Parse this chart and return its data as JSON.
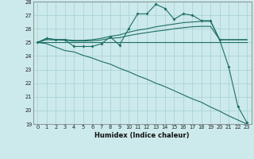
{
  "xlabel": "Humidex (Indice chaleur)",
  "bg_color": "#cce9eb",
  "grid_color": "#aad4d6",
  "line_color": "#1e6e65",
  "x_values": [
    0,
    1,
    2,
    3,
    4,
    5,
    6,
    7,
    8,
    9,
    10,
    11,
    12,
    13,
    14,
    15,
    16,
    17,
    18,
    19,
    20,
    21,
    22,
    23
  ],
  "series1": [
    25.0,
    25.3,
    25.2,
    25.2,
    24.7,
    24.7,
    24.7,
    24.9,
    25.4,
    24.8,
    26.0,
    27.1,
    27.1,
    27.8,
    27.5,
    26.7,
    27.1,
    27.0,
    26.6,
    26.6,
    25.2,
    23.2,
    20.3,
    19.1
  ],
  "series2": [
    25.0,
    25.3,
    25.2,
    25.2,
    25.15,
    25.15,
    25.2,
    25.3,
    25.45,
    25.55,
    25.75,
    25.9,
    26.0,
    26.15,
    26.25,
    26.35,
    26.45,
    26.5,
    26.55,
    26.55,
    25.2,
    25.2,
    25.2,
    25.2
  ],
  "series3": [
    25.0,
    25.2,
    25.18,
    25.16,
    25.1,
    25.1,
    25.12,
    25.18,
    25.3,
    25.35,
    25.5,
    25.62,
    25.72,
    25.82,
    25.9,
    26.0,
    26.08,
    26.15,
    26.18,
    26.18,
    25.2,
    25.2,
    25.2,
    25.2
  ],
  "series4": [
    25.0,
    25.0,
    25.0,
    25.0,
    25.0,
    25.0,
    25.0,
    25.0,
    25.0,
    25.0,
    25.0,
    25.0,
    25.0,
    25.0,
    25.0,
    25.0,
    25.0,
    25.0,
    25.0,
    25.0,
    25.0,
    25.0,
    25.0,
    25.0
  ],
  "series5": [
    25.0,
    24.9,
    24.65,
    24.4,
    24.3,
    24.05,
    23.85,
    23.6,
    23.4,
    23.1,
    22.85,
    22.55,
    22.3,
    22.0,
    21.75,
    21.45,
    21.15,
    20.85,
    20.6,
    20.25,
    19.95,
    19.6,
    19.3,
    19.0
  ],
  "ylim": [
    19,
    28
  ],
  "xlim": [
    -0.5,
    23.5
  ],
  "yticks": [
    19,
    20,
    21,
    22,
    23,
    24,
    25,
    26,
    27,
    28
  ],
  "xticks": [
    0,
    1,
    2,
    3,
    4,
    5,
    6,
    7,
    8,
    9,
    10,
    11,
    12,
    13,
    14,
    15,
    16,
    17,
    18,
    19,
    20,
    21,
    22,
    23
  ]
}
